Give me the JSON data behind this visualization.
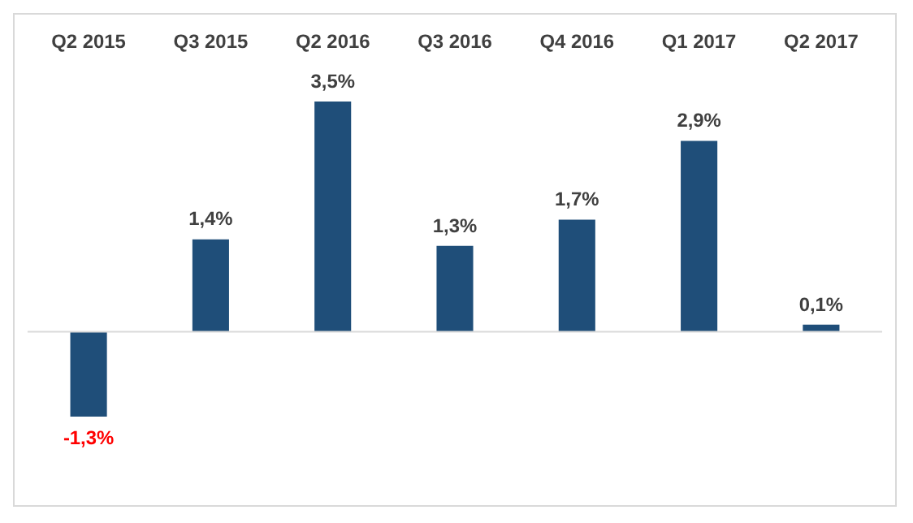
{
  "chart_data": {
    "type": "bar",
    "categories": [
      "Q2 2015",
      "Q3 2015",
      "Q2 2016",
      "Q3 2016",
      "Q4 2016",
      "Q1 2017",
      "Q2 2017"
    ],
    "values": [
      -1.3,
      1.4,
      3.5,
      1.3,
      1.7,
      2.9,
      0.1
    ],
    "value_labels": [
      "-1,3%",
      "1,4%",
      "3,5%",
      "1,3%",
      "1,7%",
      "2,9%",
      "0,1%"
    ],
    "color": "#1f4e79",
    "grid": false,
    "legend": false
  }
}
